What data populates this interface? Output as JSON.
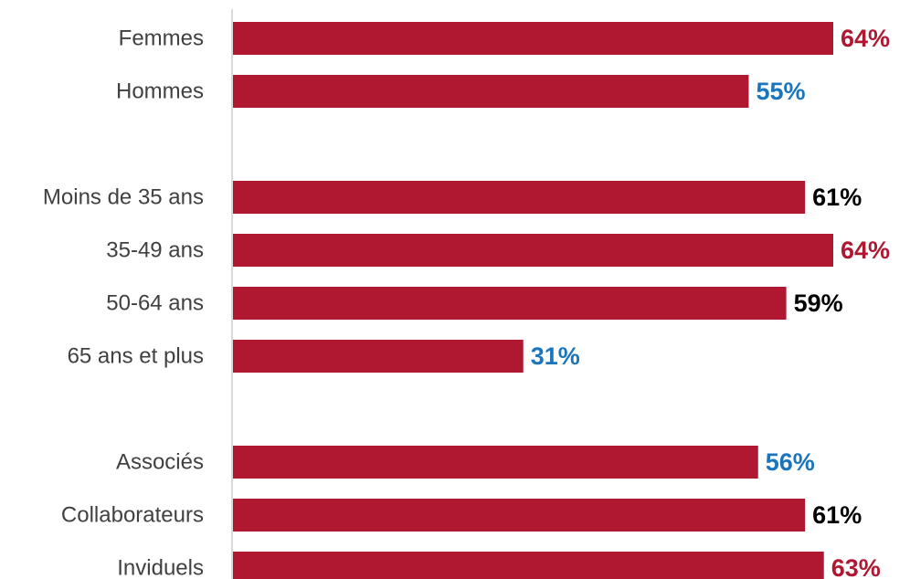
{
  "chart_data": {
    "type": "bar",
    "orientation": "horizontal",
    "categories": [
      "Femmes",
      "Hommes",
      "",
      "Moins de 35 ans",
      "35-49 ans",
      "50-64 ans",
      "65 ans et plus",
      "",
      "Associés",
      "Collaborateurs",
      "Inviduels"
    ],
    "values": [
      64,
      55,
      null,
      61,
      64,
      59,
      31,
      null,
      56,
      61,
      63
    ],
    "value_labels": [
      "64%",
      "55%",
      "",
      "61%",
      "64%",
      "59%",
      "31%",
      "",
      "56%",
      "61%",
      "63%"
    ],
    "label_colors": [
      "#b01832",
      "#1b75bc",
      "",
      "#000000",
      "#b01832",
      "#000000",
      "#1b75bc",
      "",
      "#1b75bc",
      "#000000",
      "#b01832"
    ],
    "bar_color": "#b01832",
    "axis_color": "#d9d9d9",
    "xlim": [
      0,
      64
    ],
    "grid": false,
    "legend": "none",
    "title": "",
    "xlabel": "",
    "ylabel": ""
  }
}
